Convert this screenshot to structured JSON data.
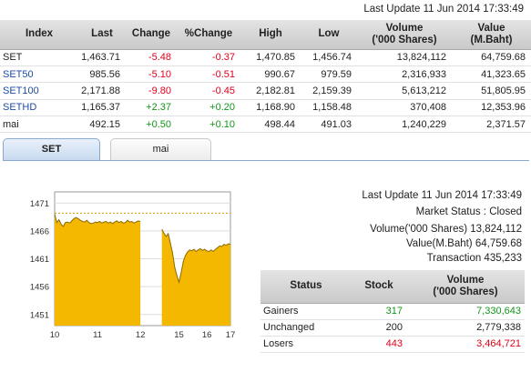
{
  "last_update_top": "Last Update 11 Jun 2014 17:33:49",
  "index_table": {
    "headers": [
      "Index",
      "Last",
      "Change",
      "%Change",
      "High",
      "Low",
      "Volume\n('000 Shares)",
      "Value\n(M.Baht)"
    ],
    "rows": [
      {
        "index": "SET",
        "last": "1,463.71",
        "change": "-5.48",
        "pct": "-0.37",
        "high": "1,470.85",
        "low": "1,456.74",
        "volume": "13,824,112",
        "value": "64,759.68"
      },
      {
        "index": "SET50",
        "last": "985.56",
        "change": "-5.10",
        "pct": "-0.51",
        "high": "990.67",
        "low": "979.59",
        "volume": "2,316,933",
        "value": "41,323.65"
      },
      {
        "index": "SET100",
        "last": "2,171.88",
        "change": "-9.80",
        "pct": "-0.45",
        "high": "2,182.81",
        "low": "2,159.39",
        "volume": "5,613,212",
        "value": "51,805.95"
      },
      {
        "index": "SETHD",
        "last": "1,165.37",
        "change": "+2.37",
        "pct": "+0.20",
        "high": "1,168.90",
        "low": "1,158.48",
        "volume": "370,408",
        "value": "12,353.96"
      },
      {
        "index": "mai",
        "last": "492.15",
        "change": "+0.50",
        "pct": "+0.10",
        "high": "498.44",
        "low": "491.03",
        "volume": "1,240,229",
        "value": "2,371.57"
      }
    ]
  },
  "tabs": [
    {
      "label": "SET",
      "active": true
    },
    {
      "label": "mai",
      "active": false
    }
  ],
  "chart_data": {
    "type": "area",
    "y_ticks": [
      "1471",
      "1466",
      "1461",
      "1456",
      "1451"
    ],
    "ylim": [
      1449,
      1473
    ],
    "x_ticks": [
      "10",
      "11",
      "12",
      "15",
      "16",
      "17"
    ],
    "reference_line": 1469.19,
    "series": [
      {
        "color": "#f5b800",
        "points": [
          [
            0,
            1469
          ],
          [
            0.05,
            1467.5
          ],
          [
            0.1,
            1468
          ],
          [
            0.15,
            1467.2
          ],
          [
            0.2,
            1466.8
          ],
          [
            0.25,
            1467.5
          ],
          [
            0.3,
            1467.6
          ],
          [
            0.35,
            1467.4
          ],
          [
            0.4,
            1467.8
          ],
          [
            0.45,
            1468.2
          ],
          [
            0.5,
            1468.4
          ],
          [
            0.55,
            1468.2
          ],
          [
            0.6,
            1467.9
          ],
          [
            0.65,
            1467.7
          ],
          [
            0.7,
            1467.6
          ],
          [
            0.75,
            1467.9
          ],
          [
            0.8,
            1467.5
          ],
          [
            0.85,
            1467.3
          ],
          [
            0.9,
            1467.4
          ],
          [
            0.95,
            1467.6
          ],
          [
            1.0,
            1467.5
          ],
          [
            1.05,
            1467.7
          ],
          [
            1.1,
            1467.4
          ],
          [
            1.15,
            1467.6
          ],
          [
            1.2,
            1467.7
          ],
          [
            1.25,
            1467.4
          ],
          [
            1.3,
            1467.6
          ],
          [
            1.35,
            1467.3
          ],
          [
            1.4,
            1467.6
          ],
          [
            1.45,
            1467.8
          ],
          [
            1.5,
            1467.5
          ],
          [
            1.55,
            1467.7
          ],
          [
            1.6,
            1467.4
          ],
          [
            1.65,
            1467.5
          ],
          [
            1.7,
            1467.9
          ],
          [
            1.75,
            1467.6
          ],
          [
            1.8,
            1467.7
          ],
          [
            1.85,
            1467.4
          ],
          [
            1.9,
            1467.6
          ],
          [
            1.95,
            1467.8
          ],
          [
            2.0,
            1467.7
          ],
          [
            2.5,
            1466.3
          ],
          [
            2.55,
            1465.6
          ],
          [
            2.6,
            1465.0
          ],
          [
            2.65,
            1465.5
          ],
          [
            2.7,
            1463.8
          ],
          [
            2.75,
            1462.0
          ],
          [
            2.8,
            1459.5
          ],
          [
            2.85,
            1458.0
          ],
          [
            2.9,
            1456.8
          ],
          [
            2.95,
            1458.5
          ],
          [
            3.0,
            1460.5
          ],
          [
            3.05,
            1461.6
          ],
          [
            3.1,
            1462.2
          ],
          [
            3.15,
            1462.6
          ],
          [
            3.2,
            1462.4
          ],
          [
            3.25,
            1462.7
          ],
          [
            3.3,
            1462.3
          ],
          [
            3.35,
            1462.6
          ],
          [
            3.4,
            1462.8
          ],
          [
            3.45,
            1462.5
          ],
          [
            3.5,
            1462.7
          ],
          [
            3.55,
            1462.4
          ],
          [
            3.6,
            1462.3
          ],
          [
            3.65,
            1462.6
          ],
          [
            3.7,
            1462.3
          ],
          [
            3.75,
            1462.7
          ],
          [
            3.8,
            1463.0
          ],
          [
            3.85,
            1463.3
          ],
          [
            3.9,
            1463.2
          ],
          [
            3.95,
            1463.6
          ],
          [
            4.0,
            1463.4
          ],
          [
            4.05,
            1463.7
          ],
          [
            4.1,
            1463.6
          ]
        ]
      }
    ]
  },
  "market_info": {
    "last_update": "Last Update 11 Jun 2014 17:33:49",
    "market_status": "Market Status : Closed",
    "volume": "Volume('000 Shares) 13,824,112",
    "value": "Value(M.Baht) 64,759.68",
    "transaction": "Transaction 435,233"
  },
  "status_table": {
    "headers": [
      "Status",
      "Stock",
      "Volume\n('000 Shares)"
    ],
    "rows": [
      {
        "status": "Gainers",
        "stock": "317",
        "volume": "7,330,643",
        "color": "#109618"
      },
      {
        "status": "Unchanged",
        "stock": "200",
        "volume": "2,779,338",
        "color": "#222222"
      },
      {
        "status": "Losers",
        "stock": "443",
        "volume": "3,464,721",
        "color": "#e0001b"
      }
    ]
  }
}
